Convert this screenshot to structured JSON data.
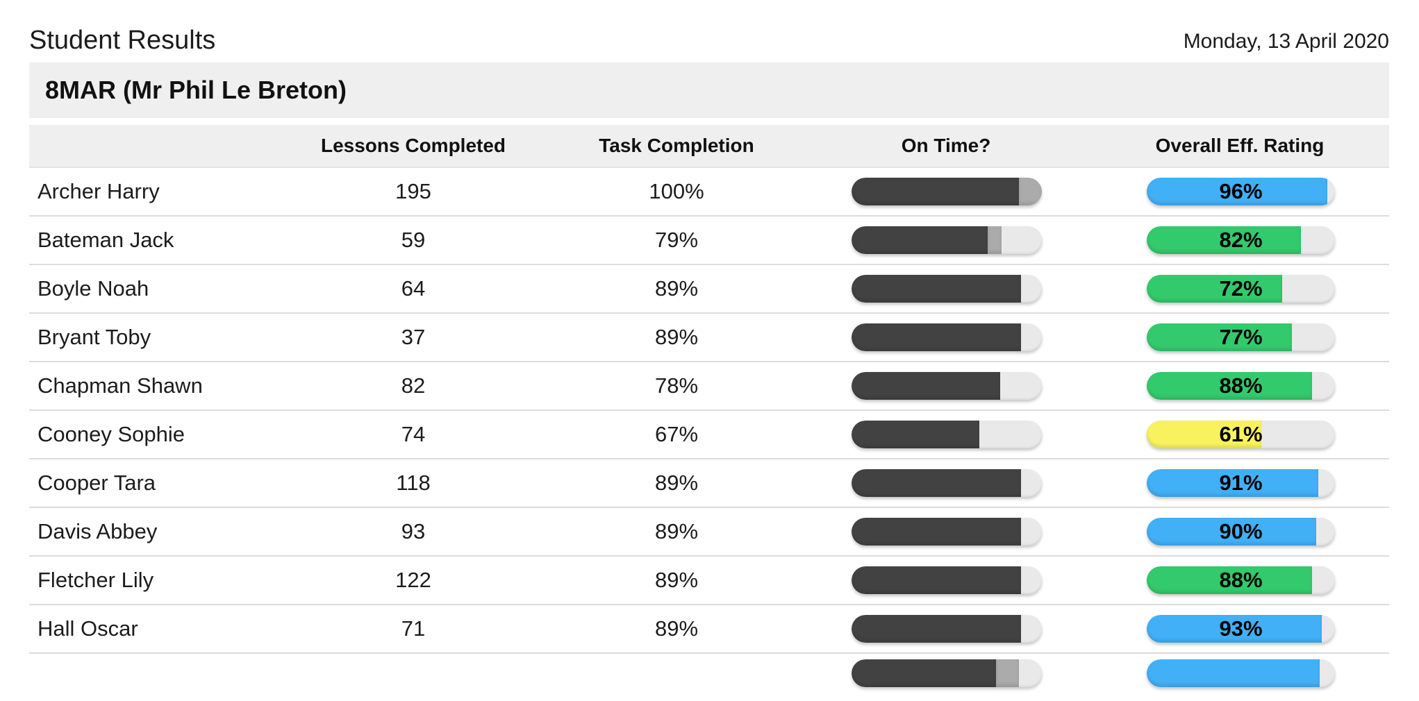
{
  "header": {
    "title": "Student Results",
    "date": "Monday, 13 April 2020"
  },
  "group": {
    "label": "8MAR (Mr Phil Le Breton)"
  },
  "table": {
    "columns": [
      "Lessons Completed",
      "Task Completion",
      "On Time?",
      "Overall Eff. Rating"
    ],
    "rows": [
      {
        "name": "Archer Harry",
        "lessons": "195",
        "task": "100%",
        "on_time_pct": 88,
        "late_pct": 12,
        "rating_pct": 96,
        "rating_label": "96%",
        "rating_color": "blue",
        "partial": false
      },
      {
        "name": "Bateman Jack",
        "lessons": "59",
        "task": "79%",
        "on_time_pct": 71.5,
        "late_pct": 7.5,
        "rating_pct": 82,
        "rating_label": "82%",
        "rating_color": "green",
        "partial": false
      },
      {
        "name": "Boyle Noah",
        "lessons": "64",
        "task": "89%",
        "on_time_pct": 89,
        "late_pct": 0,
        "rating_pct": 72,
        "rating_label": "72%",
        "rating_color": "green",
        "partial": false
      },
      {
        "name": "Bryant Toby",
        "lessons": "37",
        "task": "89%",
        "on_time_pct": 89,
        "late_pct": 0,
        "rating_pct": 77,
        "rating_label": "77%",
        "rating_color": "green",
        "partial": false
      },
      {
        "name": "Chapman Shawn",
        "lessons": "82",
        "task": "78%",
        "on_time_pct": 78,
        "late_pct": 0,
        "rating_pct": 88,
        "rating_label": "88%",
        "rating_color": "green",
        "partial": false
      },
      {
        "name": "Cooney Sophie",
        "lessons": "74",
        "task": "67%",
        "on_time_pct": 67,
        "late_pct": 0,
        "rating_pct": 61,
        "rating_label": "61%",
        "rating_color": "yellow",
        "partial": false
      },
      {
        "name": "Cooper Tara",
        "lessons": "118",
        "task": "89%",
        "on_time_pct": 89,
        "late_pct": 0,
        "rating_pct": 91,
        "rating_label": "91%",
        "rating_color": "blue",
        "partial": false
      },
      {
        "name": "Davis Abbey",
        "lessons": "93",
        "task": "89%",
        "on_time_pct": 89,
        "late_pct": 0,
        "rating_pct": 90,
        "rating_label": "90%",
        "rating_color": "blue",
        "partial": false
      },
      {
        "name": "Fletcher Lily",
        "lessons": "122",
        "task": "89%",
        "on_time_pct": 89,
        "late_pct": 0,
        "rating_pct": 88,
        "rating_label": "88%",
        "rating_color": "green",
        "partial": false
      },
      {
        "name": "Hall Oscar",
        "lessons": "71",
        "task": "89%",
        "on_time_pct": 89,
        "late_pct": 0,
        "rating_pct": 93,
        "rating_label": "93%",
        "rating_color": "blue",
        "partial": false
      },
      {
        "name": "",
        "lessons": "",
        "task": "",
        "on_time_pct": 76,
        "late_pct": 12,
        "rating_pct": 92,
        "rating_label": "",
        "rating_color": "blue",
        "partial": true
      }
    ]
  },
  "colors": {
    "blue": "#41b0f6",
    "green": "#32ca6c",
    "yellow": "#f8f25e",
    "on_time_dark": "#424242",
    "late_grey": "#ababab",
    "track_grey": "#e9e9e9",
    "band_grey": "#efefef",
    "divider_grey": "#dcdcdc"
  }
}
